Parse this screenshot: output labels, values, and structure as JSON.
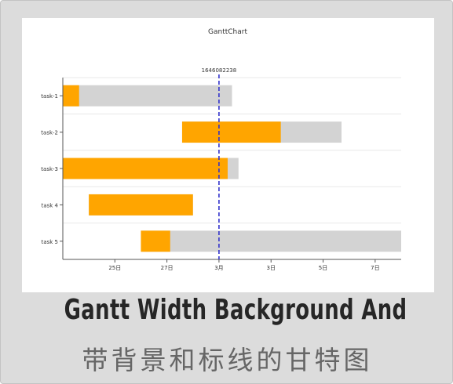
{
  "caption": {
    "title_en": "Gantt Width Background And",
    "title_zh": "带背景和标线的甘特图"
  },
  "colors": {
    "progress": "#ffa500",
    "background_bar": "#d3d3d3",
    "marker_line": "#3333cc",
    "grid": "#e8e8e8",
    "axis": "#555555",
    "text": "#333333"
  },
  "chart_data": {
    "type": "gantt",
    "title": "GanttChart",
    "x_unit": "day",
    "xlim": [
      "2022-02-23",
      "2022-03-08"
    ],
    "ticks": [
      {
        "date": "2022-02-25",
        "label": "25日"
      },
      {
        "date": "2022-02-27",
        "label": "27日"
      },
      {
        "date": "2022-03-01",
        "label": "3月"
      },
      {
        "date": "2022-03-03",
        "label": "3日"
      },
      {
        "date": "2022-03-05",
        "label": "5日"
      },
      {
        "date": "2022-03-07",
        "label": "7日"
      }
    ],
    "marker": {
      "date": "2022-03-01",
      "label": "1646082238"
    },
    "tasks": [
      {
        "name": "task-1",
        "bg_start": "2022-02-23",
        "bg_end": "2022-03-01T12:00",
        "progress_start": "2022-02-23",
        "progress_end": "2022-02-23T15:00"
      },
      {
        "name": "task-2",
        "bg_start": "2022-02-27T14:00",
        "bg_end": "2022-03-05T17:00",
        "progress_start": "2022-02-27T14:00",
        "progress_end": "2022-03-03T09:00"
      },
      {
        "name": "task-3",
        "bg_start": "2022-02-23",
        "bg_end": "2022-03-01T18:00",
        "progress_start": "2022-02-23",
        "progress_end": "2022-03-01T08:00"
      },
      {
        "name": "task 4",
        "bg_start": "2022-02-24",
        "bg_end": "2022-02-28T00:00",
        "progress_start": "2022-02-24",
        "progress_end": "2022-02-28T00:00"
      },
      {
        "name": "task 5",
        "bg_start": "2022-02-26",
        "bg_end": "2022-03-08",
        "progress_start": "2022-02-26",
        "progress_end": "2022-02-27T03:00"
      }
    ]
  }
}
